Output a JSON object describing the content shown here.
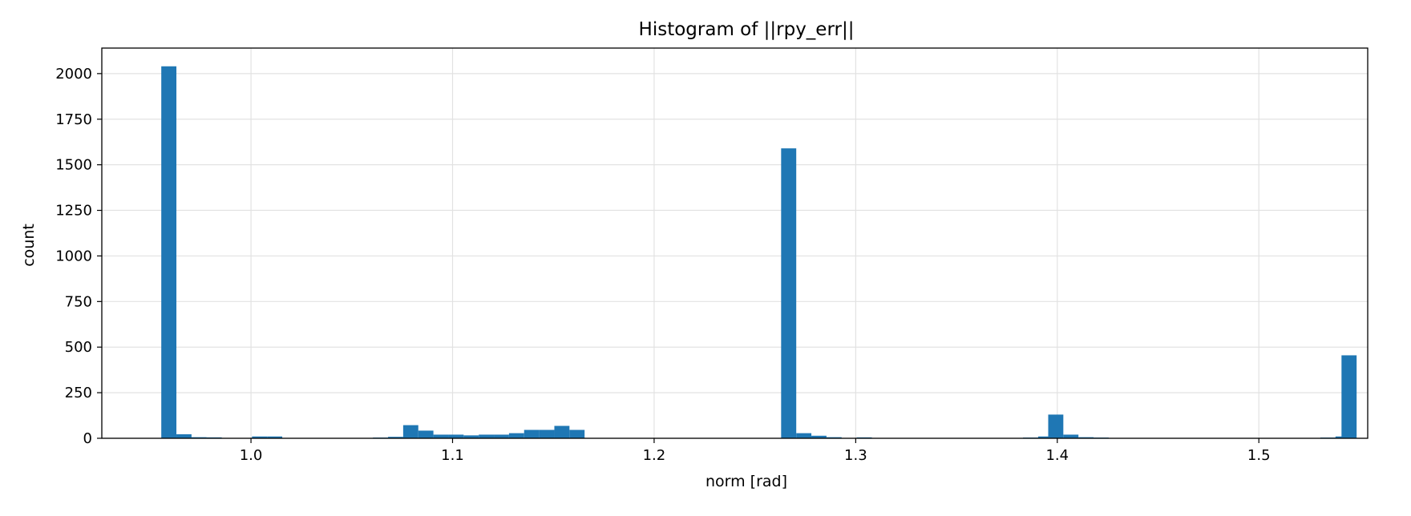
{
  "chart_data": {
    "type": "bar",
    "title": "Histogram of ||rpy_err||",
    "xlabel": "norm [rad]",
    "ylabel": "count",
    "xlim": [
      0.926,
      1.554
    ],
    "ylim": [
      0,
      2140
    ],
    "xticks": [
      1.0,
      1.1,
      1.2,
      1.3,
      1.4,
      1.5
    ],
    "xtick_labels": [
      "1.0",
      "1.1",
      "1.2",
      "1.3",
      "1.4",
      "1.5"
    ],
    "yticks": [
      0,
      250,
      500,
      750,
      1000,
      1250,
      1500,
      1750,
      2000
    ],
    "ytick_labels": [
      "0",
      "250",
      "500",
      "750",
      "1000",
      "1250",
      "1500",
      "1750",
      "2000"
    ],
    "grid": true,
    "bar_color": "#1f77b4",
    "bin_width": 0.0075,
    "bins": [
      {
        "x0": 0.9555,
        "count": 2040
      },
      {
        "x0": 0.963,
        "count": 22
      },
      {
        "x0": 0.9705,
        "count": 6
      },
      {
        "x0": 0.978,
        "count": 5
      },
      {
        "x0": 1.0005,
        "count": 10
      },
      {
        "x0": 1.008,
        "count": 10
      },
      {
        "x0": 1.0605,
        "count": 4
      },
      {
        "x0": 1.068,
        "count": 8
      },
      {
        "x0": 1.0755,
        "count": 72
      },
      {
        "x0": 1.083,
        "count": 42
      },
      {
        "x0": 1.0905,
        "count": 20
      },
      {
        "x0": 1.098,
        "count": 20
      },
      {
        "x0": 1.1055,
        "count": 16
      },
      {
        "x0": 1.113,
        "count": 20
      },
      {
        "x0": 1.1205,
        "count": 20
      },
      {
        "x0": 1.128,
        "count": 28
      },
      {
        "x0": 1.1355,
        "count": 46
      },
      {
        "x0": 1.143,
        "count": 46
      },
      {
        "x0": 1.1505,
        "count": 68
      },
      {
        "x0": 1.158,
        "count": 46
      },
      {
        "x0": 1.263,
        "count": 1590
      },
      {
        "x0": 1.2705,
        "count": 28
      },
      {
        "x0": 1.278,
        "count": 14
      },
      {
        "x0": 1.2855,
        "count": 6
      },
      {
        "x0": 1.3005,
        "count": 5
      },
      {
        "x0": 1.383,
        "count": 4
      },
      {
        "x0": 1.3905,
        "count": 10
      },
      {
        "x0": 1.3955,
        "count": 130
      },
      {
        "x0": 1.403,
        "count": 20
      },
      {
        "x0": 1.4105,
        "count": 6
      },
      {
        "x0": 1.418,
        "count": 4
      },
      {
        "x0": 1.5305,
        "count": 4
      },
      {
        "x0": 1.538,
        "count": 10
      },
      {
        "x0": 1.541,
        "count": 455
      }
    ]
  }
}
